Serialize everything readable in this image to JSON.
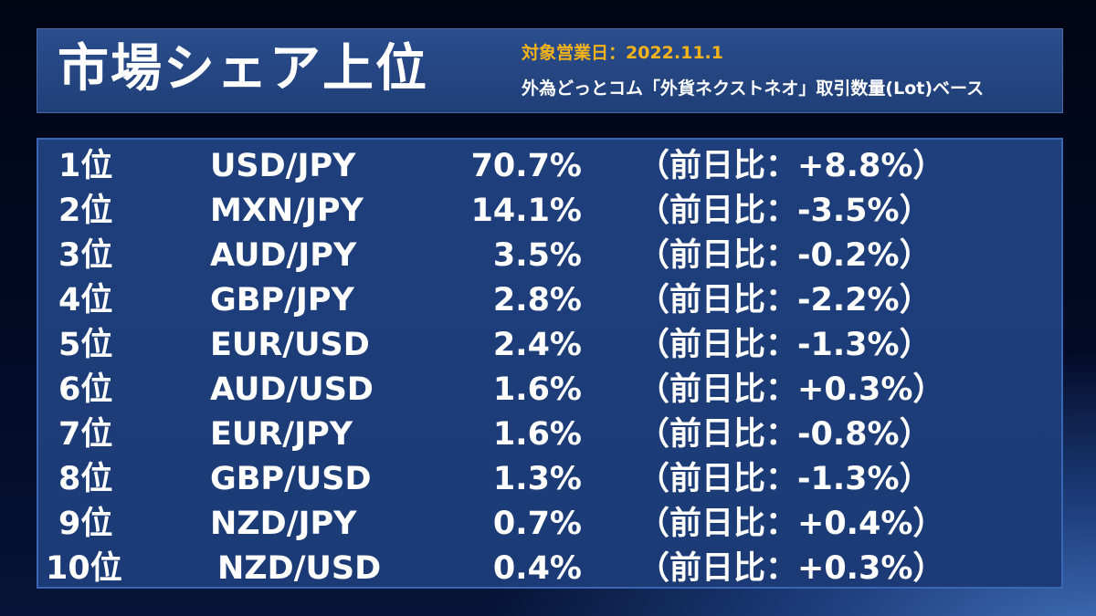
{
  "header": {
    "title": "市場シェア上位",
    "date_line": "対象営業日：2022.11.1",
    "basis_line": "外為どっとコム「外貨ネクストネオ」取引数量(Lot)ベース"
  },
  "rows": [
    {
      "rank": "1位",
      "pair": "USD/JPY",
      "share": "70.7%",
      "change": "（前日比：+8.8%）"
    },
    {
      "rank": "2位",
      "pair": "MXN/JPY",
      "share": "14.1%",
      "change": "（前日比：-3.5%）"
    },
    {
      "rank": "3位",
      "pair": "AUD/JPY",
      "share": "3.5%",
      "change": "（前日比：-0.2%）"
    },
    {
      "rank": "4位",
      "pair": "GBP/JPY",
      "share": "2.8%",
      "change": "（前日比：-2.2%）"
    },
    {
      "rank": "5位",
      "pair": "EUR/USD",
      "share": "2.4%",
      "change": "（前日比：-1.3%）"
    },
    {
      "rank": "6位",
      "pair": "AUD/USD",
      "share": "1.6%",
      "change": "（前日比：+0.3%）"
    },
    {
      "rank": "7位",
      "pair": "EUR/JPY",
      "share": "1.6%",
      "change": "（前日比：-0.8%）"
    },
    {
      "rank": "8位",
      "pair": "GBP/USD",
      "share": "1.3%",
      "change": "（前日比：-1.3%）"
    },
    {
      "rank": "9位",
      "pair": "NZD/JPY",
      "share": "0.7%",
      "change": "（前日比：+0.4%）"
    },
    {
      "rank": "10位",
      "pair": "NZD/USD",
      "share": "0.4%",
      "change": "（前日比：+0.3%）"
    }
  ]
}
